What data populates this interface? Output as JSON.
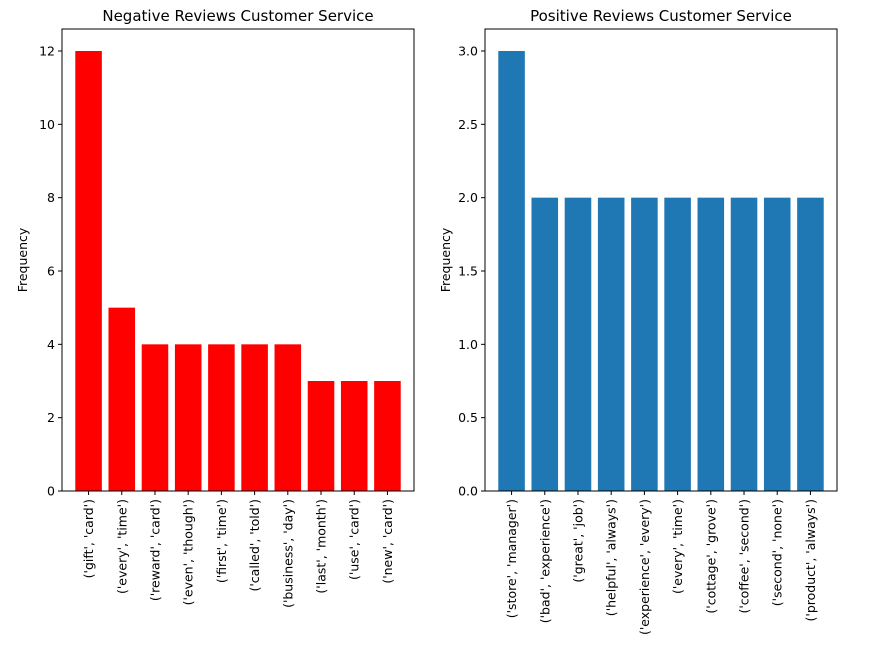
{
  "chart_data": [
    {
      "type": "bar",
      "title": "Negative Reviews Customer Service",
      "xlabel": "",
      "ylabel": "Frequency",
      "color": "#ff0000",
      "ylim": [
        0,
        12.6
      ],
      "yticks": [
        0,
        2,
        4,
        6,
        8,
        10,
        12
      ],
      "ytick_labels": [
        "0",
        "2",
        "4",
        "6",
        "8",
        "10",
        "12"
      ],
      "categories": [
        "('gift', 'card')",
        "('every', 'time')",
        "('reward', 'card')",
        "('even', 'though')",
        "('first', 'time')",
        "('called', 'told')",
        "('business', 'day')",
        "('last', 'month')",
        "('use', 'card')",
        "('new', 'card')"
      ],
      "values": [
        12,
        5,
        4,
        4,
        4,
        4,
        4,
        3,
        3,
        3
      ],
      "grid": false
    },
    {
      "type": "bar",
      "title": "Positive Reviews Customer Service",
      "xlabel": "",
      "ylabel": "Frequency",
      "color": "#1f77b4",
      "ylim": [
        0,
        3.15
      ],
      "yticks": [
        0,
        0.5,
        1,
        1.5,
        2,
        2.5,
        3
      ],
      "ytick_labels": [
        "0.0",
        "0.5",
        "1.0",
        "1.5",
        "2.0",
        "2.5",
        "3.0"
      ],
      "categories": [
        "('store', 'manager')",
        "('bad', 'experience')",
        "('great', 'job')",
        "('helpful', 'always')",
        "('experience', 'every')",
        "('every', 'time')",
        "('cottage', 'grove')",
        "('coffee', 'second')",
        "('second', 'none')",
        "('product', 'always')"
      ],
      "values": [
        3,
        2,
        2,
        2,
        2,
        2,
        2,
        2,
        2,
        2
      ],
      "grid": false
    }
  ]
}
